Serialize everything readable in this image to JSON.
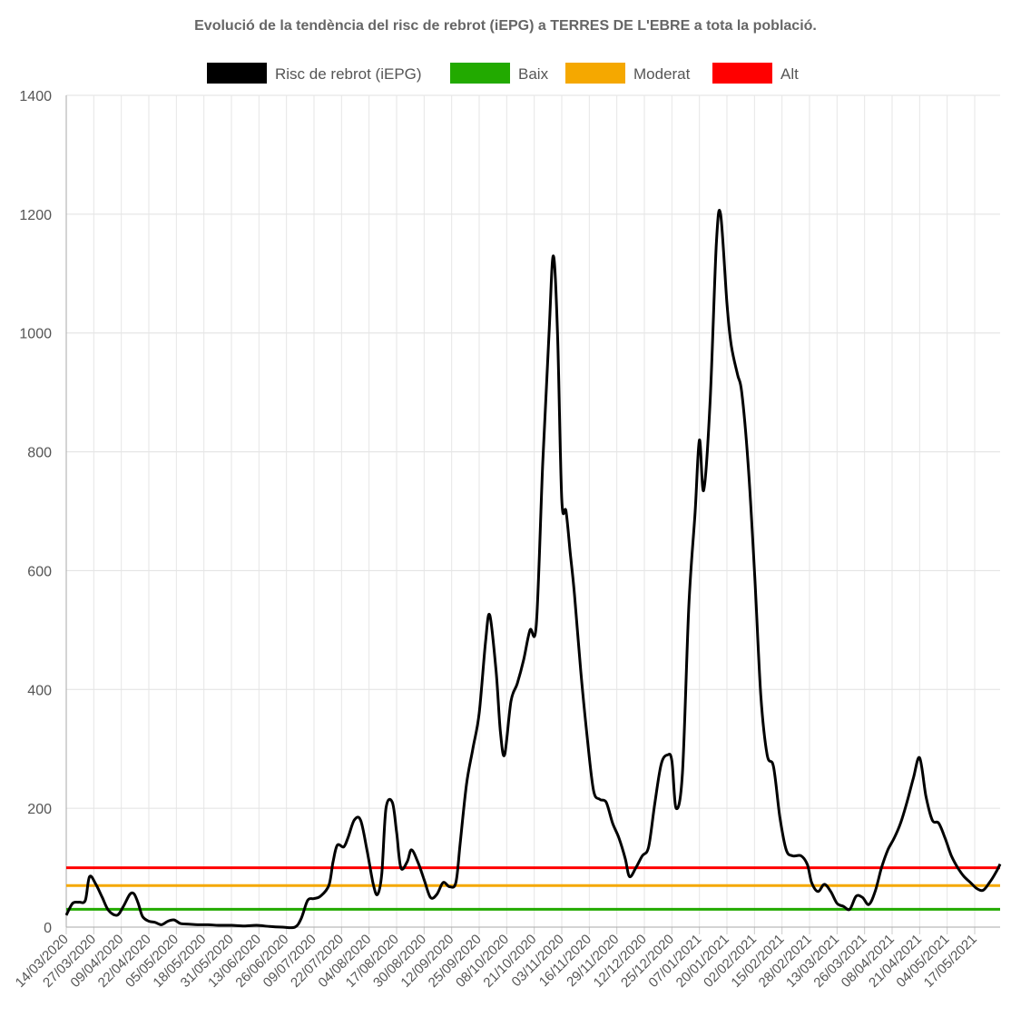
{
  "chart_data": {
    "type": "line",
    "title": "Evolució de la tendència del risc de rebrot (iEPG) a TERRES DE L'EBRE a tota la població.",
    "xlabel": "",
    "ylabel": "",
    "ylim": [
      0,
      1400
    ],
    "yticks": [
      0,
      200,
      400,
      600,
      800,
      1000,
      1200,
      1400
    ],
    "grid": true,
    "legend_position": "top",
    "x_range": [
      "14/03/2020",
      "29/05/2021"
    ],
    "xtick_labels": [
      "14/03/2020",
      "27/03/2020",
      "09/04/2020",
      "22/04/2020",
      "05/05/2020",
      "18/05/2020",
      "31/05/2020",
      "13/06/2020",
      "26/06/2020",
      "09/07/2020",
      "22/07/2020",
      "04/08/2020",
      "17/08/2020",
      "30/08/2020",
      "12/09/2020",
      "25/09/2020",
      "08/10/2020",
      "21/10/2020",
      "03/11/2020",
      "16/11/2020",
      "29/11/2020",
      "12/12/2020",
      "25/12/2020",
      "07/01/2021",
      "20/01/2021",
      "02/02/2021",
      "15/02/2021",
      "28/02/2021",
      "13/03/2021",
      "26/03/2021",
      "08/04/2021",
      "21/04/2021",
      "04/05/2021",
      "17/05/2021"
    ],
    "series": [
      {
        "name": "Risc de rebrot (iEPG)",
        "color": "#000000",
        "points": [
          [
            "14/03/2020",
            20
          ],
          [
            "17/03/2020",
            40
          ],
          [
            "20/03/2020",
            42
          ],
          [
            "23/03/2020",
            45
          ],
          [
            "25/03/2020",
            85
          ],
          [
            "28/03/2020",
            72
          ],
          [
            "31/03/2020",
            50
          ],
          [
            "03/04/2020",
            28
          ],
          [
            "07/04/2020",
            20
          ],
          [
            "10/04/2020",
            35
          ],
          [
            "13/04/2020",
            55
          ],
          [
            "15/04/2020",
            56
          ],
          [
            "17/04/2020",
            40
          ],
          [
            "19/04/2020",
            18
          ],
          [
            "22/04/2020",
            10
          ],
          [
            "25/04/2020",
            8
          ],
          [
            "28/04/2020",
            4
          ],
          [
            "01/05/2020",
            10
          ],
          [
            "04/05/2020",
            12
          ],
          [
            "07/05/2020",
            6
          ],
          [
            "11/05/2020",
            5
          ],
          [
            "15/05/2020",
            4
          ],
          [
            "20/05/2020",
            4
          ],
          [
            "25/05/2020",
            3
          ],
          [
            "31/05/2020",
            3
          ],
          [
            "06/06/2020",
            2
          ],
          [
            "12/06/2020",
            3
          ],
          [
            "18/06/2020",
            1
          ],
          [
            "24/06/2020",
            0
          ],
          [
            "30/06/2020",
            0
          ],
          [
            "03/07/2020",
            15
          ],
          [
            "06/07/2020",
            45
          ],
          [
            "09/07/2020",
            48
          ],
          [
            "12/07/2020",
            52
          ],
          [
            "16/07/2020",
            70
          ],
          [
            "18/07/2020",
            110
          ],
          [
            "20/07/2020",
            138
          ],
          [
            "23/07/2020",
            135
          ],
          [
            "25/07/2020",
            150
          ],
          [
            "28/07/2020",
            180
          ],
          [
            "31/07/2020",
            180
          ],
          [
            "03/08/2020",
            130
          ],
          [
            "06/08/2020",
            72
          ],
          [
            "08/08/2020",
            55
          ],
          [
            "10/08/2020",
            90
          ],
          [
            "12/08/2020",
            200
          ],
          [
            "15/08/2020",
            210
          ],
          [
            "17/08/2020",
            160
          ],
          [
            "19/08/2020",
            100
          ],
          [
            "22/08/2020",
            110
          ],
          [
            "24/08/2020",
            130
          ],
          [
            "27/08/2020",
            110
          ],
          [
            "30/08/2020",
            80
          ],
          [
            "02/09/2020",
            50
          ],
          [
            "05/09/2020",
            55
          ],
          [
            "08/09/2020",
            75
          ],
          [
            "11/09/2020",
            68
          ],
          [
            "14/09/2020",
            75
          ],
          [
            "16/09/2020",
            140
          ],
          [
            "19/09/2020",
            240
          ],
          [
            "22/09/2020",
            300
          ],
          [
            "25/09/2020",
            360
          ],
          [
            "28/09/2020",
            480
          ],
          [
            "30/09/2020",
            525
          ],
          [
            "03/10/2020",
            430
          ],
          [
            "05/10/2020",
            330
          ],
          [
            "07/10/2020",
            290
          ],
          [
            "10/10/2020",
            380
          ],
          [
            "13/10/2020",
            410
          ],
          [
            "16/10/2020",
            450
          ],
          [
            "19/10/2020",
            500
          ],
          [
            "22/10/2020",
            510
          ],
          [
            "25/10/2020",
            780
          ],
          [
            "28/10/2020",
            1000
          ],
          [
            "30/10/2020",
            1130
          ],
          [
            "01/11/2020",
            1000
          ],
          [
            "03/11/2020",
            720
          ],
          [
            "05/11/2020",
            700
          ],
          [
            "07/11/2020",
            630
          ],
          [
            "09/11/2020",
            560
          ],
          [
            "12/11/2020",
            430
          ],
          [
            "15/11/2020",
            320
          ],
          [
            "18/11/2020",
            230
          ],
          [
            "21/11/2020",
            215
          ],
          [
            "24/11/2020",
            210
          ],
          [
            "27/11/2020",
            175
          ],
          [
            "30/11/2020",
            150
          ],
          [
            "03/12/2020",
            115
          ],
          [
            "05/12/2020",
            85
          ],
          [
            "08/12/2020",
            100
          ],
          [
            "11/12/2020",
            120
          ],
          [
            "14/12/2020",
            135
          ],
          [
            "17/12/2020",
            210
          ],
          [
            "20/12/2020",
            275
          ],
          [
            "23/12/2020",
            290
          ],
          [
            "25/12/2020",
            280
          ],
          [
            "27/12/2020",
            200
          ],
          [
            "30/12/2020",
            260
          ],
          [
            "02/01/2021",
            540
          ],
          [
            "05/01/2021",
            700
          ],
          [
            "07/01/2021",
            820
          ],
          [
            "09/01/2021",
            735
          ],
          [
            "12/01/2021",
            880
          ],
          [
            "15/01/2021",
            1150
          ],
          [
            "17/01/2021",
            1200
          ],
          [
            "20/01/2021",
            1050
          ],
          [
            "22/01/2021",
            980
          ],
          [
            "25/01/2021",
            930
          ],
          [
            "27/01/2021",
            900
          ],
          [
            "30/01/2021",
            780
          ],
          [
            "02/02/2021",
            600
          ],
          [
            "05/02/2021",
            390
          ],
          [
            "08/02/2021",
            290
          ],
          [
            "11/02/2021",
            270
          ],
          [
            "14/02/2021",
            185
          ],
          [
            "17/02/2021",
            130
          ],
          [
            "20/02/2021",
            120
          ],
          [
            "24/02/2021",
            120
          ],
          [
            "27/02/2021",
            105
          ],
          [
            "01/03/2021",
            75
          ],
          [
            "04/03/2021",
            60
          ],
          [
            "07/03/2021",
            72
          ],
          [
            "10/03/2021",
            60
          ],
          [
            "13/03/2021",
            40
          ],
          [
            "16/03/2021",
            35
          ],
          [
            "19/03/2021",
            30
          ],
          [
            "22/03/2021",
            52
          ],
          [
            "25/03/2021",
            50
          ],
          [
            "28/03/2021",
            38
          ],
          [
            "31/03/2021",
            60
          ],
          [
            "03/04/2021",
            100
          ],
          [
            "06/04/2021",
            130
          ],
          [
            "09/04/2021",
            150
          ],
          [
            "12/04/2021",
            175
          ],
          [
            "15/04/2021",
            210
          ],
          [
            "18/04/2021",
            250
          ],
          [
            "21/04/2021",
            285
          ],
          [
            "24/04/2021",
            220
          ],
          [
            "27/04/2021",
            180
          ],
          [
            "30/04/2021",
            175
          ],
          [
            "03/05/2021",
            150
          ],
          [
            "06/05/2021",
            120
          ],
          [
            "09/05/2021",
            100
          ],
          [
            "12/05/2021",
            85
          ],
          [
            "15/05/2021",
            75
          ],
          [
            "18/05/2021",
            65
          ],
          [
            "21/05/2021",
            62
          ],
          [
            "24/05/2021",
            75
          ],
          [
            "27/05/2021",
            92
          ],
          [
            "29/05/2021",
            106
          ]
        ]
      },
      {
        "name": "Baix",
        "color": "#22aa00",
        "constant": 30
      },
      {
        "name": "Moderat",
        "color": "#f5a800",
        "constant": 70
      },
      {
        "name": "Alt",
        "color": "#ff0000",
        "constant": 100
      }
    ]
  }
}
